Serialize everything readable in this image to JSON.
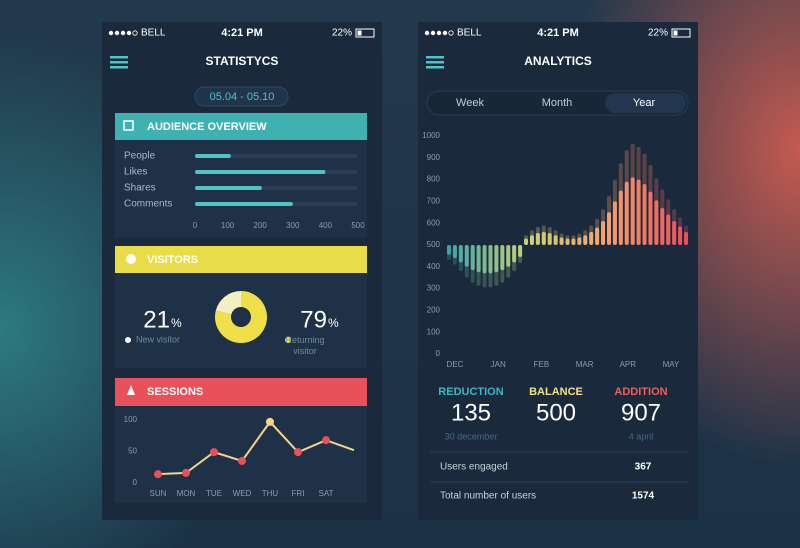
{
  "screens": [
    {
      "status": {
        "carrier": "BELL",
        "time": "4:21 PM",
        "battery": "22%"
      },
      "title": "STATISTYCS",
      "date_range": "05.04 - 05.10",
      "audience": {
        "title": "AUDIENCE OVERVIEW",
        "categories": [
          "People",
          "Likes",
          "Shares",
          "Comments"
        ],
        "values": [
          110,
          400,
          205,
          300
        ],
        "xlim": [
          0,
          500
        ],
        "xticks": [
          0,
          100,
          200,
          300,
          400,
          500
        ],
        "color": "#4fc3c8"
      },
      "visitors": {
        "title": "VISITORS",
        "new": {
          "value": 21,
          "unit": "%",
          "label": "New visitor",
          "color": "#f4f0c4"
        },
        "returning": {
          "value": 79,
          "unit": "%",
          "label": "Returning visitor",
          "color": "#efe04a"
        }
      },
      "sessions": {
        "title": "SESSIONS",
        "categories": [
          "SUN",
          "MON",
          "TUE",
          "WED",
          "THU",
          "FRI",
          "SAT",
          null
        ],
        "values": [
          14,
          16,
          49,
          35,
          97,
          49,
          68,
          52
        ],
        "ylim": [
          0,
          100
        ],
        "yticks": [
          0,
          50,
          100
        ],
        "line_color": "#f2d58a",
        "point_color": "#e8505a"
      }
    },
    {
      "status": {
        "carrier": "BELL",
        "time": "4:21 PM",
        "battery": "22%"
      },
      "title": "ANALYTICS",
      "tabs": [
        "Week",
        "Month",
        "Year"
      ],
      "selected_tab": 2,
      "chart": {
        "type": "bar",
        "months": [
          "DEC",
          "JAN",
          "FEB",
          "MAR",
          "APR",
          "MAY"
        ],
        "values": [
          455,
          440,
          420,
          400,
          385,
          375,
          370,
          370,
          375,
          385,
          400,
          420,
          445,
          530,
          545,
          555,
          560,
          555,
          545,
          535,
          530,
          530,
          535,
          545,
          560,
          580,
          610,
          650,
          700,
          750,
          790,
          810,
          800,
          780,
          745,
          705,
          670,
          640,
          610,
          585,
          560
        ],
        "ylim": [
          0,
          1000
        ],
        "yticks": [
          0,
          100,
          200,
          300,
          400,
          500,
          600,
          700,
          800,
          900,
          1000
        ],
        "colors": [
          "#3fa3a6",
          "#c9d27a",
          "#f4a070",
          "#e8505a"
        ]
      },
      "stats": [
        {
          "label": "REDUCTION",
          "value": 135,
          "note": "30 december",
          "color": "#3fb6c0"
        },
        {
          "label": "BALANCE",
          "value": 500,
          "color": "#f0e08a"
        },
        {
          "label": "ADDITION",
          "value": 907,
          "note": "4 april",
          "color": "#f0605a"
        }
      ],
      "rows": [
        {
          "label": "Users engaged",
          "value": 367
        },
        {
          "label": "Total number of users",
          "value": 1574
        }
      ]
    }
  ]
}
